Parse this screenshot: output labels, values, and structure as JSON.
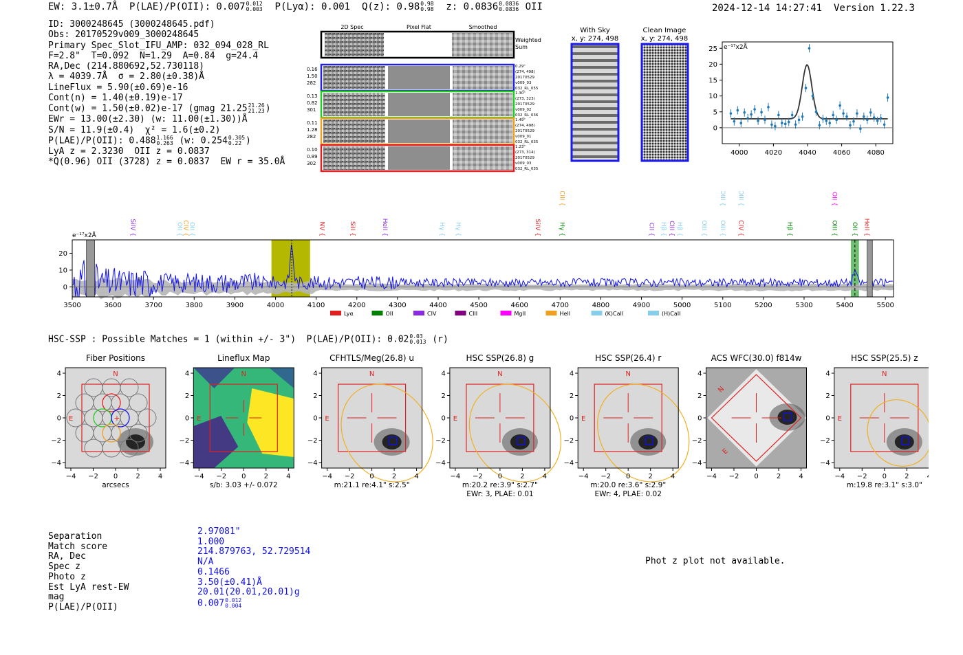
{
  "header": {
    "line": "EW: 3.1±0.7Å  P(LAE)/P(OII): 0.007",
    "plae_hi": "0.012",
    "plae_lo": "0.003",
    "plya": "P(Lyα): 0.001",
    "qz": "Q(z): 0.98",
    "qz_hi": "0.98",
    "qz_lo": "0.98",
    "z": "z: 0.0836",
    "z_hi": "0.0836",
    "z_lo": "0.0836",
    "oii": "OII",
    "timestamp": "2024-12-14 14:27:41",
    "version": "Version 1.22.3"
  },
  "info": {
    "id": "ID: 3000248645 (3000248645.pdf)",
    "obs": "Obs: 20170529v009_3000248645",
    "primary": "Primary Spec_Slot_IFU_AMP: 032_094_028_RL",
    "fwhm": "F=2.8\"  T=0.092  N=1.29  A=0.84  g=24.4",
    "radec": "RA,Dec (214.880692,52.730118)",
    "lambda": "λ = 4039.7Å  σ = 2.80(±0.38)Å",
    "lineflux": "LineFlux = 5.90(±0.69)e-16",
    "contn": "Cont(n) = 1.40(±0.19)e-17",
    "contw": "Cont(w) = 1.50(±0.02)e-17 (gmag 21.25",
    "contw_hi": "21.26",
    "contw_lo": "21.23",
    "contw_end": ")",
    "ewr": "EWr = 13.00(±2.30) (w: 11.00(±1.30))Å",
    "sn": "S/N = 11.9(±0.4)  χ² = 1.6(±0.2)",
    "plae": "P(LAE)/P(OII): 0.488",
    "plae_hi": "1.166",
    "plae_lo": "0.263",
    "plae_w": "(w: 0.254",
    "plae_w_hi": "0.305",
    "plae_w_lo": "0.22",
    "plae_w_end": ")",
    "lya": "LyA z = 2.3230  OII z = 0.0837",
    "q": "*Q(0.96) OII (3728) z = 0.0837  EW r = 35.0Å"
  },
  "cutouts": {
    "col_titles": [
      "2D Spec",
      "Pixel Flat",
      "Smoothed"
    ],
    "weighted_sum": [
      "Weighted",
      "Sum"
    ],
    "rows": [
      {
        "left": [
          "0.16",
          "1.50",
          "282"
        ],
        "right": [
          "0.29\"",
          "(274, 498)",
          "20170529",
          "v009_03",
          "032_RL_055"
        ],
        "color": "#2222dd"
      },
      {
        "left": [
          "0.13",
          "0.82",
          "301"
        ],
        "right": [
          "1.30\"",
          "(273, 323)",
          "20170529",
          "v009_02",
          "032_RL_036"
        ],
        "color": "#22cc22"
      },
      {
        "left": [
          "0.11",
          "1.28",
          "282"
        ],
        "right": [
          "1.49\"",
          "(274, 498)",
          "20170529",
          "v009_01",
          "032_RL_035"
        ],
        "color": "#f0a020"
      },
      {
        "left": [
          "0.10",
          "0.89",
          "302"
        ],
        "right": [
          "1.23\"",
          "(273, 314)",
          "20170529",
          "v009_03",
          "032_RL_035"
        ],
        "color": "#e02020"
      }
    ],
    "sky_title": "With Sky",
    "sky_coords": "x, y: 274, 498",
    "clean_title": "Clean Image",
    "clean_coords": "x, y: 274, 498"
  },
  "chart_data": [
    {
      "type": "scatter",
      "title": "",
      "unit_label": "e⁻¹⁷x2Å",
      "xlim": [
        3990,
        4090
      ],
      "ylim": [
        -5,
        27
      ],
      "x_ticks": [
        4000,
        4020,
        4040,
        4060,
        4080
      ],
      "y_ticks": [
        0,
        5,
        10,
        15,
        20,
        25
      ],
      "points_x": [
        3995,
        3997,
        3999,
        4001,
        4003,
        4005,
        4007,
        4009,
        4011,
        4013,
        4015,
        4017,
        4019,
        4021,
        4023,
        4025,
        4027,
        4029,
        4031,
        4033,
        4035,
        4037,
        4039,
        4041,
        4043,
        4045,
        4047,
        4049,
        4051,
        4053,
        4055,
        4057,
        4059,
        4061,
        4063,
        4065,
        4067,
        4069,
        4071,
        4073,
        4075,
        4077,
        4079,
        4081,
        4083,
        4085,
        4087
      ],
      "points_y": [
        4.5,
        2.0,
        5.5,
        1.5,
        4.8,
        3.0,
        4.2,
        5.8,
        2.2,
        4.9,
        2.5,
        6.5,
        1.0,
        0.5,
        4.0,
        1.5,
        1.2,
        1.8,
        4.0,
        1.0,
        2.5,
        3.5,
        12.5,
        25.0,
        10.0,
        5.0,
        0.8,
        2.8,
        2.2,
        1.5,
        4.0,
        2.5,
        7.0,
        4.5,
        3.5,
        0.8,
        2.0,
        4.5,
        -0.3,
        3.5,
        2.5,
        4.8,
        3.2,
        2.2,
        3.0,
        1.0,
        9.5
      ],
      "model": "gaussian",
      "model_center": 4039.7,
      "model_sigma": 2.8,
      "model_amp": 17.0,
      "model_cont": 2.8,
      "model_xlim": [
        3995,
        4087
      ]
    },
    {
      "type": "line",
      "title": "",
      "unit_label": "e⁻¹⁷x2Å",
      "xlim": [
        3500,
        5520
      ],
      "ylim": [
        -6,
        28
      ],
      "x_ticks": [
        3500,
        3600,
        3700,
        3800,
        3900,
        4000,
        4100,
        4200,
        4300,
        4400,
        4500,
        4600,
        4700,
        4800,
        4900,
        5000,
        5100,
        5200,
        5300,
        5400,
        5500
      ],
      "y_ticks": [
        0,
        10,
        20
      ],
      "highlight_band": [
        3990,
        4085
      ],
      "highlight_color": "#b5b800",
      "oii_band": [
        5415,
        5435
      ],
      "oii_color": "#4caf50",
      "line_markers": [
        {
          "label": "SiIV",
          "x": 3645,
          "color": "#8a2be2",
          "row": 0
        },
        {
          "label": "OII",
          "x": 3760,
          "color": "#87ceeb",
          "row": 0
        },
        {
          "label": "CIV",
          "x": 3775,
          "color": "#f0a020",
          "row": 0
        },
        {
          "label": "OII",
          "x": 3790,
          "color": "#87ceeb",
          "row": 0
        },
        {
          "label": "NV",
          "x": 4110,
          "color": "#e02020",
          "row": 0
        },
        {
          "label": "SiII",
          "x": 4185,
          "color": "#e02020",
          "row": 0
        },
        {
          "label": "HeII",
          "x": 4265,
          "color": "#8a2be2",
          "row": 0
        },
        {
          "label": "Hγ",
          "x": 4405,
          "color": "#87ceeb",
          "row": 0
        },
        {
          "label": "Hγ",
          "x": 4445,
          "color": "#87ceeb",
          "row": 0
        },
        {
          "label": "SiIV",
          "x": 4640,
          "color": "#e02020",
          "row": 0
        },
        {
          "label": "CIII",
          "x": 4700,
          "color": "#f0a020",
          "row": 1
        },
        {
          "label": "Hγ",
          "x": 4700,
          "color": "#008000",
          "row": 0
        },
        {
          "label": "CII",
          "x": 4920,
          "color": "#8a2be2",
          "row": 0
        },
        {
          "label": "Hβ",
          "x": 4950,
          "color": "#87ceeb",
          "row": 0
        },
        {
          "label": "CIII",
          "x": 4970,
          "color": "#8a2be2",
          "row": 0
        },
        {
          "label": "Hβ",
          "x": 4990,
          "color": "#87ceeb",
          "row": 0
        },
        {
          "label": "OIII",
          "x": 5050,
          "color": "#87ceeb",
          "row": 0
        },
        {
          "label": "OIII",
          "x": 5095,
          "color": "#87ceeb",
          "row": 0
        },
        {
          "label": "OIII",
          "x": 5095,
          "color": "#87ceeb",
          "row": 1
        },
        {
          "label": "OIII",
          "x": 5140,
          "color": "#87ceeb",
          "row": 1
        },
        {
          "label": "CIV",
          "x": 5140,
          "color": "#e02020",
          "row": 0
        },
        {
          "label": "Hβ",
          "x": 5260,
          "color": "#008000",
          "row": 0
        },
        {
          "label": "OII",
          "x": 5370,
          "color": "#ff00ff",
          "row": 1
        },
        {
          "label": "OIII",
          "x": 5370,
          "color": "#008000",
          "row": 0
        },
        {
          "label": "OII",
          "x": 5420,
          "color": "#008000",
          "row": 0
        },
        {
          "label": "HeII",
          "x": 5450,
          "color": "#e02020",
          "row": 0
        }
      ],
      "legend": [
        {
          "label": "Lyα",
          "color": "#e02020"
        },
        {
          "label": "OII",
          "color": "#008000"
        },
        {
          "label": "CIV",
          "color": "#8a2be2"
        },
        {
          "label": "CIII",
          "color": "#800080"
        },
        {
          "label": "MgII",
          "color": "#ff00ff"
        },
        {
          "label": "HeII",
          "color": "#f0a020"
        },
        {
          "label": "(K)CaII",
          "color": "#87ceeb"
        },
        {
          "label": "(H)CaII",
          "color": "#87ceeb"
        }
      ]
    }
  ],
  "hsc": {
    "title": "HSC-SSP : Possible Matches = 1 (within +/- 3\")  P(LAE)/P(OII): 0.02",
    "plae_hi": "0.03",
    "plae_lo": "0.013",
    "band": "(r)",
    "thumbs": [
      {
        "title": "Fiber Positions",
        "caption1": "arcsecs",
        "caption2": ""
      },
      {
        "title": "Lineflux Map",
        "caption1": "s/b: 3.03 +/- 0.072",
        "caption2": ""
      },
      {
        "title": "CFHTLS/Meg(26.8) u",
        "caption1": "m:21.1   re:4.1\"  s:2.5\"",
        "caption2": ""
      },
      {
        "title": "HSC SSP(26.8) g",
        "caption1": "m:20.2   re:3.9\"  s:2.7\"",
        "caption2": "EWr: 3, PLAE: 0.01"
      },
      {
        "title": "HSC SSP(26.4) r",
        "caption1": "m:20.0   re:3.6\"  s:2.9\"",
        "caption2": "EWr: 4, PLAE: 0.02"
      },
      {
        "title": "ACS WFC(30.0) f814w",
        "caption1": "",
        "caption2": ""
      },
      {
        "title": "HSC SSP(25.5) z",
        "caption1": "m:19.8   re:3.1\"  s:3.0\"",
        "caption2": ""
      }
    ],
    "axis_ticks_x": [
      "−4",
      "−2",
      "0",
      "2",
      "4"
    ],
    "axis_ticks_y": [
      "4",
      "2",
      "0",
      "−2",
      "−4"
    ],
    "n_label": "N",
    "e_label": "E"
  },
  "bottom": {
    "labels": [
      "Separation",
      "Match score",
      "RA, Dec",
      "Spec z",
      "Photo z",
      "Est LyA rest-EW",
      "mag",
      "P(LAE)/P(OII)"
    ],
    "values": [
      "2.97081\"",
      "1.000",
      "214.879763, 52.729514",
      "N/A",
      "0.1466",
      "3.50(±0.41)Å",
      "20.01(20.01,20.01)g",
      "0.007"
    ],
    "plae_hi": "0.012",
    "plae_lo": "0.004",
    "phot_note": "Phot z plot not available."
  }
}
